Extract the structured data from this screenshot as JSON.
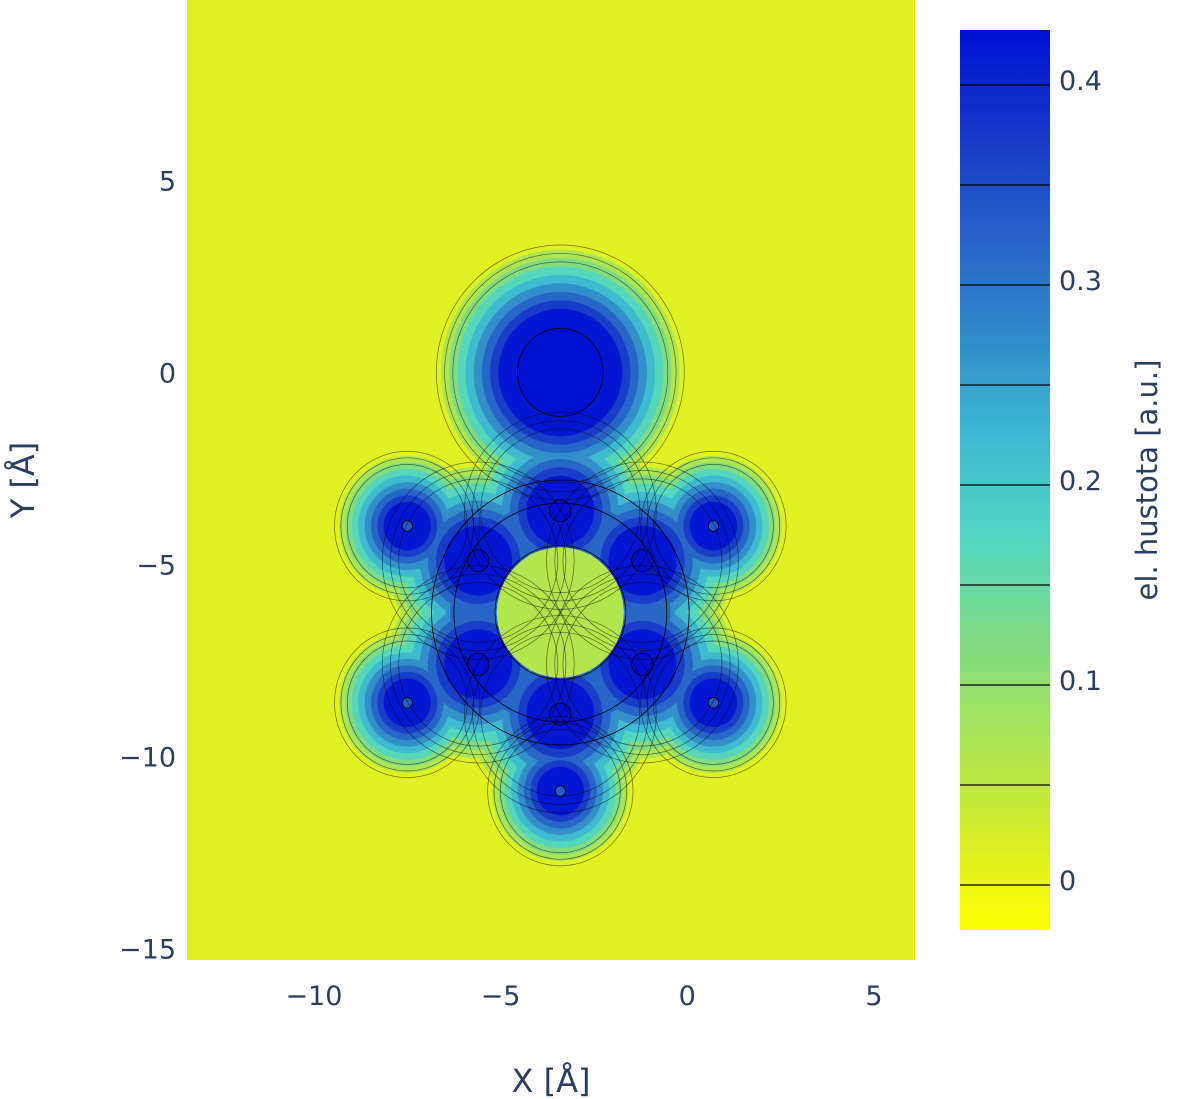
{
  "chart_data": {
    "type": "heatmap",
    "subtype": "contour",
    "xlabel": "X [Å]",
    "ylabel": "Y [Å]",
    "xlim": [
      -13.4,
      6.1
    ],
    "ylim": [
      -15.3,
      9.7
    ],
    "x_ticks": [
      {
        "value": -10,
        "label": "−10"
      },
      {
        "value": -5,
        "label": "−5"
      },
      {
        "value": 0,
        "label": "0"
      },
      {
        "value": 5,
        "label": "5"
      }
    ],
    "y_ticks": [
      {
        "value": 5,
        "label": "5"
      },
      {
        "value": 0,
        "label": "0"
      },
      {
        "value": -5,
        "label": "−5"
      },
      {
        "value": -10,
        "label": "−10"
      },
      {
        "value": -15,
        "label": "−15"
      }
    ],
    "colorbar": {
      "title": "el. hustota [a.u.]",
      "range": [
        -0.025,
        0.425
      ],
      "contour_levels": [
        -0.0025,
        0.0475,
        0.0975,
        0.1475,
        0.1975,
        0.2475,
        0.2975,
        0.3475,
        0.3975
      ],
      "ticks": [
        {
          "value": 0,
          "label": "0"
        },
        {
          "value": 0.1,
          "label": "0.1"
        },
        {
          "value": 0.2,
          "label": "0.2"
        },
        {
          "value": 0.3,
          "label": "0.3"
        },
        {
          "value": 0.4,
          "label": "0.4"
        }
      ],
      "colorscale": [
        "#ffff00",
        "#d2ed2c",
        "#a6e35a",
        "#7bdb89",
        "#4fd6c4",
        "#3cb6d1",
        "#3088c9",
        "#2660c7",
        "#1437c9",
        "#0010d2"
      ]
    },
    "background_value": 0.0,
    "atoms": [
      {
        "x": -3.4,
        "y": 0.0,
        "radius": 1.0,
        "peak": 0.425
      },
      {
        "x": -3.4,
        "y": -3.6,
        "radius": 0.25,
        "peak": 0.425
      },
      {
        "x": -5.6,
        "y": -4.9,
        "radius": 0.25,
        "peak": 0.425
      },
      {
        "x": -1.2,
        "y": -4.9,
        "radius": 0.25,
        "peak": 0.425
      },
      {
        "x": -5.6,
        "y": -7.6,
        "radius": 0.25,
        "peak": 0.425
      },
      {
        "x": -1.2,
        "y": -7.6,
        "radius": 0.25,
        "peak": 0.425
      },
      {
        "x": -3.4,
        "y": -8.9,
        "radius": 0.25,
        "peak": 0.425
      },
      {
        "x": -7.5,
        "y": -4.0,
        "radius": 0.12,
        "peak": 0.33
      },
      {
        "x": 0.7,
        "y": -4.0,
        "radius": 0.12,
        "peak": 0.33
      },
      {
        "x": -7.5,
        "y": -8.6,
        "radius": 0.12,
        "peak": 0.33
      },
      {
        "x": 0.7,
        "y": -8.6,
        "radius": 0.12,
        "peak": 0.33
      },
      {
        "x": -3.4,
        "y": -10.9,
        "radius": 0.12,
        "peak": 0.33
      }
    ],
    "ring": {
      "center_x": -3.4,
      "center_y": -6.25,
      "radius": 2.35,
      "density": 0.3
    },
    "grid": false,
    "legend": "colorbar-right"
  }
}
